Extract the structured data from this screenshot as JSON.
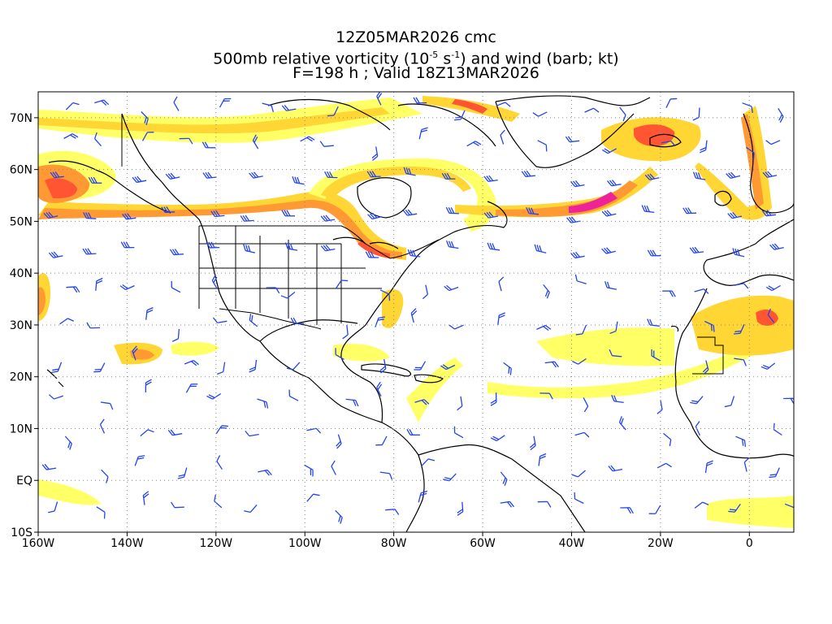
{
  "title": {
    "line1": "12Z05MAR2026 cmc",
    "line2_prefix": "500mb relative vorticity (10",
    "line2_exp1": "-5",
    "line2_mid": " s",
    "line2_exp2": "-1",
    "line2_suffix": ") and wind (barb; kt)",
    "line3": "F=198 h ; Valid 18Z13MAR2026"
  },
  "axes": {
    "x_ticks": [
      {
        "lon": -160,
        "label": "160W"
      },
      {
        "lon": -140,
        "label": "140W"
      },
      {
        "lon": -120,
        "label": "120W"
      },
      {
        "lon": -100,
        "label": "100W"
      },
      {
        "lon": -80,
        "label": "80W"
      },
      {
        "lon": -60,
        "label": "60W"
      },
      {
        "lon": -40,
        "label": "40W"
      },
      {
        "lon": -20,
        "label": "20W"
      },
      {
        "lon": 0,
        "label": "0"
      }
    ],
    "y_ticks": [
      {
        "lat": 70,
        "label": "70N"
      },
      {
        "lat": 60,
        "label": "60N"
      },
      {
        "lat": 50,
        "label": "50N"
      },
      {
        "lat": 40,
        "label": "40N"
      },
      {
        "lat": 30,
        "label": "30N"
      },
      {
        "lat": 20,
        "label": "20N"
      },
      {
        "lat": 10,
        "label": "10N"
      },
      {
        "lat": 0,
        "label": "EQ"
      },
      {
        "lat": -10,
        "label": "10S"
      }
    ],
    "lon_range": [
      -160,
      10
    ],
    "lat_range": [
      -10,
      75
    ],
    "grid": "dotted"
  },
  "colors": {
    "vort_low": "#ffff66",
    "vort_mid": "#ffd633",
    "vort_high": "#ff9933",
    "vort_higher": "#ff5533",
    "vort_max": "#ee2299",
    "barb": "#2244ee",
    "coast": "#000000"
  }
}
